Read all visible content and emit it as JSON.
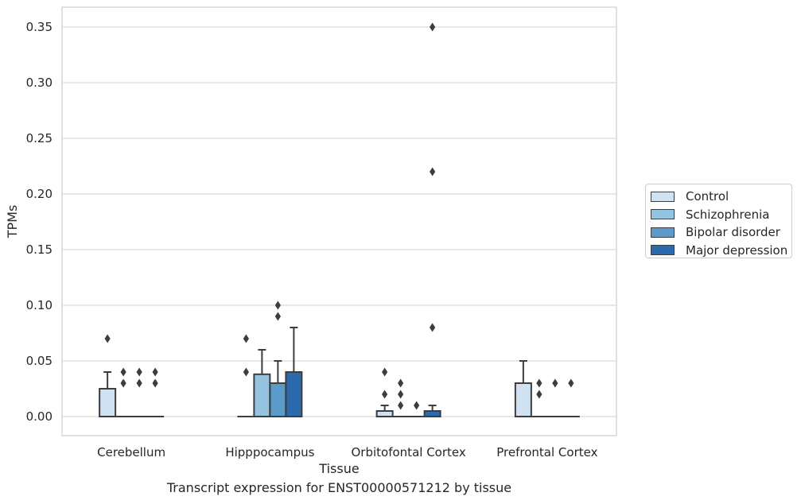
{
  "chart_data": {
    "type": "box",
    "title": "",
    "caption": "Transcript expression for ENST00000571212 by tissue",
    "xlabel": "Tissue",
    "ylabel": "TPMs",
    "ylim": [
      -0.017,
      0.368
    ],
    "yticks": [
      0.0,
      0.05,
      0.1,
      0.15,
      0.2,
      0.25,
      0.3,
      0.35
    ],
    "ytick_labels": [
      "0.00",
      "0.05",
      "0.10",
      "0.15",
      "0.20",
      "0.25",
      "0.30",
      "0.35"
    ],
    "grid": true,
    "legend_position": "right",
    "categories": [
      "Cerebellum",
      "Hipppocampus",
      "Orbitofontal Cortex",
      "Prefrontal Cortex"
    ],
    "series": [
      {
        "name": "Control",
        "color": "#d0e1f2",
        "boxes": [
          {
            "q1": 0.0,
            "median": 0.0,
            "q3": 0.025,
            "whisker_low": 0.0,
            "whisker_high": 0.04,
            "outliers": [
              0.07
            ]
          },
          {
            "q1": 0.0,
            "median": 0.0,
            "q3": 0.0,
            "whisker_low": 0.0,
            "whisker_high": 0.0,
            "outliers": [
              0.04,
              0.07
            ]
          },
          {
            "q1": 0.0,
            "median": 0.0,
            "q3": 0.005,
            "whisker_low": 0.0,
            "whisker_high": 0.01,
            "outliers": [
              0.02,
              0.04
            ]
          },
          {
            "q1": 0.0,
            "median": 0.0,
            "q3": 0.03,
            "whisker_low": 0.0,
            "whisker_high": 0.05,
            "outliers": []
          }
        ]
      },
      {
        "name": "Schizophrenia",
        "color": "#94c4df",
        "boxes": [
          {
            "q1": 0.0,
            "median": 0.0,
            "q3": 0.0,
            "whisker_low": 0.0,
            "whisker_high": 0.0,
            "outliers": [
              0.03,
              0.04
            ]
          },
          {
            "q1": 0.0,
            "median": 0.0,
            "q3": 0.038,
            "whisker_low": 0.0,
            "whisker_high": 0.06,
            "outliers": []
          },
          {
            "q1": 0.0,
            "median": 0.0,
            "q3": 0.0,
            "whisker_low": 0.0,
            "whisker_high": 0.0,
            "outliers": [
              0.01,
              0.02,
              0.03
            ]
          },
          {
            "q1": 0.0,
            "median": 0.0,
            "q3": 0.0,
            "whisker_low": 0.0,
            "whisker_high": 0.0,
            "outliers": [
              0.02,
              0.03
            ]
          }
        ]
      },
      {
        "name": "Bipolar disorder",
        "color": "#5a9bc9",
        "boxes": [
          {
            "q1": 0.0,
            "median": 0.0,
            "q3": 0.0,
            "whisker_low": 0.0,
            "whisker_high": 0.0,
            "outliers": [
              0.03,
              0.04
            ]
          },
          {
            "q1": 0.0,
            "median": 0.0,
            "q3": 0.03,
            "whisker_low": 0.0,
            "whisker_high": 0.05,
            "outliers": [
              0.09,
              0.1
            ]
          },
          {
            "q1": 0.0,
            "median": 0.0,
            "q3": 0.0,
            "whisker_low": 0.0,
            "whisker_high": 0.0,
            "outliers": [
              0.01
            ]
          },
          {
            "q1": 0.0,
            "median": 0.0,
            "q3": 0.0,
            "whisker_low": 0.0,
            "whisker_high": 0.0,
            "outliers": [
              0.03
            ]
          }
        ]
      },
      {
        "name": "Major depression",
        "color": "#2a6aad",
        "boxes": [
          {
            "q1": 0.0,
            "median": 0.0,
            "q3": 0.0,
            "whisker_low": 0.0,
            "whisker_high": 0.0,
            "outliers": [
              0.03,
              0.04
            ]
          },
          {
            "q1": 0.0,
            "median": 0.0,
            "q3": 0.04,
            "whisker_low": 0.0,
            "whisker_high": 0.08,
            "outliers": []
          },
          {
            "q1": 0.0,
            "median": 0.0,
            "q3": 0.005,
            "whisker_low": 0.0,
            "whisker_high": 0.01,
            "outliers": [
              0.08,
              0.22,
              0.35
            ]
          },
          {
            "q1": 0.0,
            "median": 0.0,
            "q3": 0.0,
            "whisker_low": 0.0,
            "whisker_high": 0.0,
            "outliers": [
              0.03
            ]
          }
        ]
      }
    ]
  }
}
